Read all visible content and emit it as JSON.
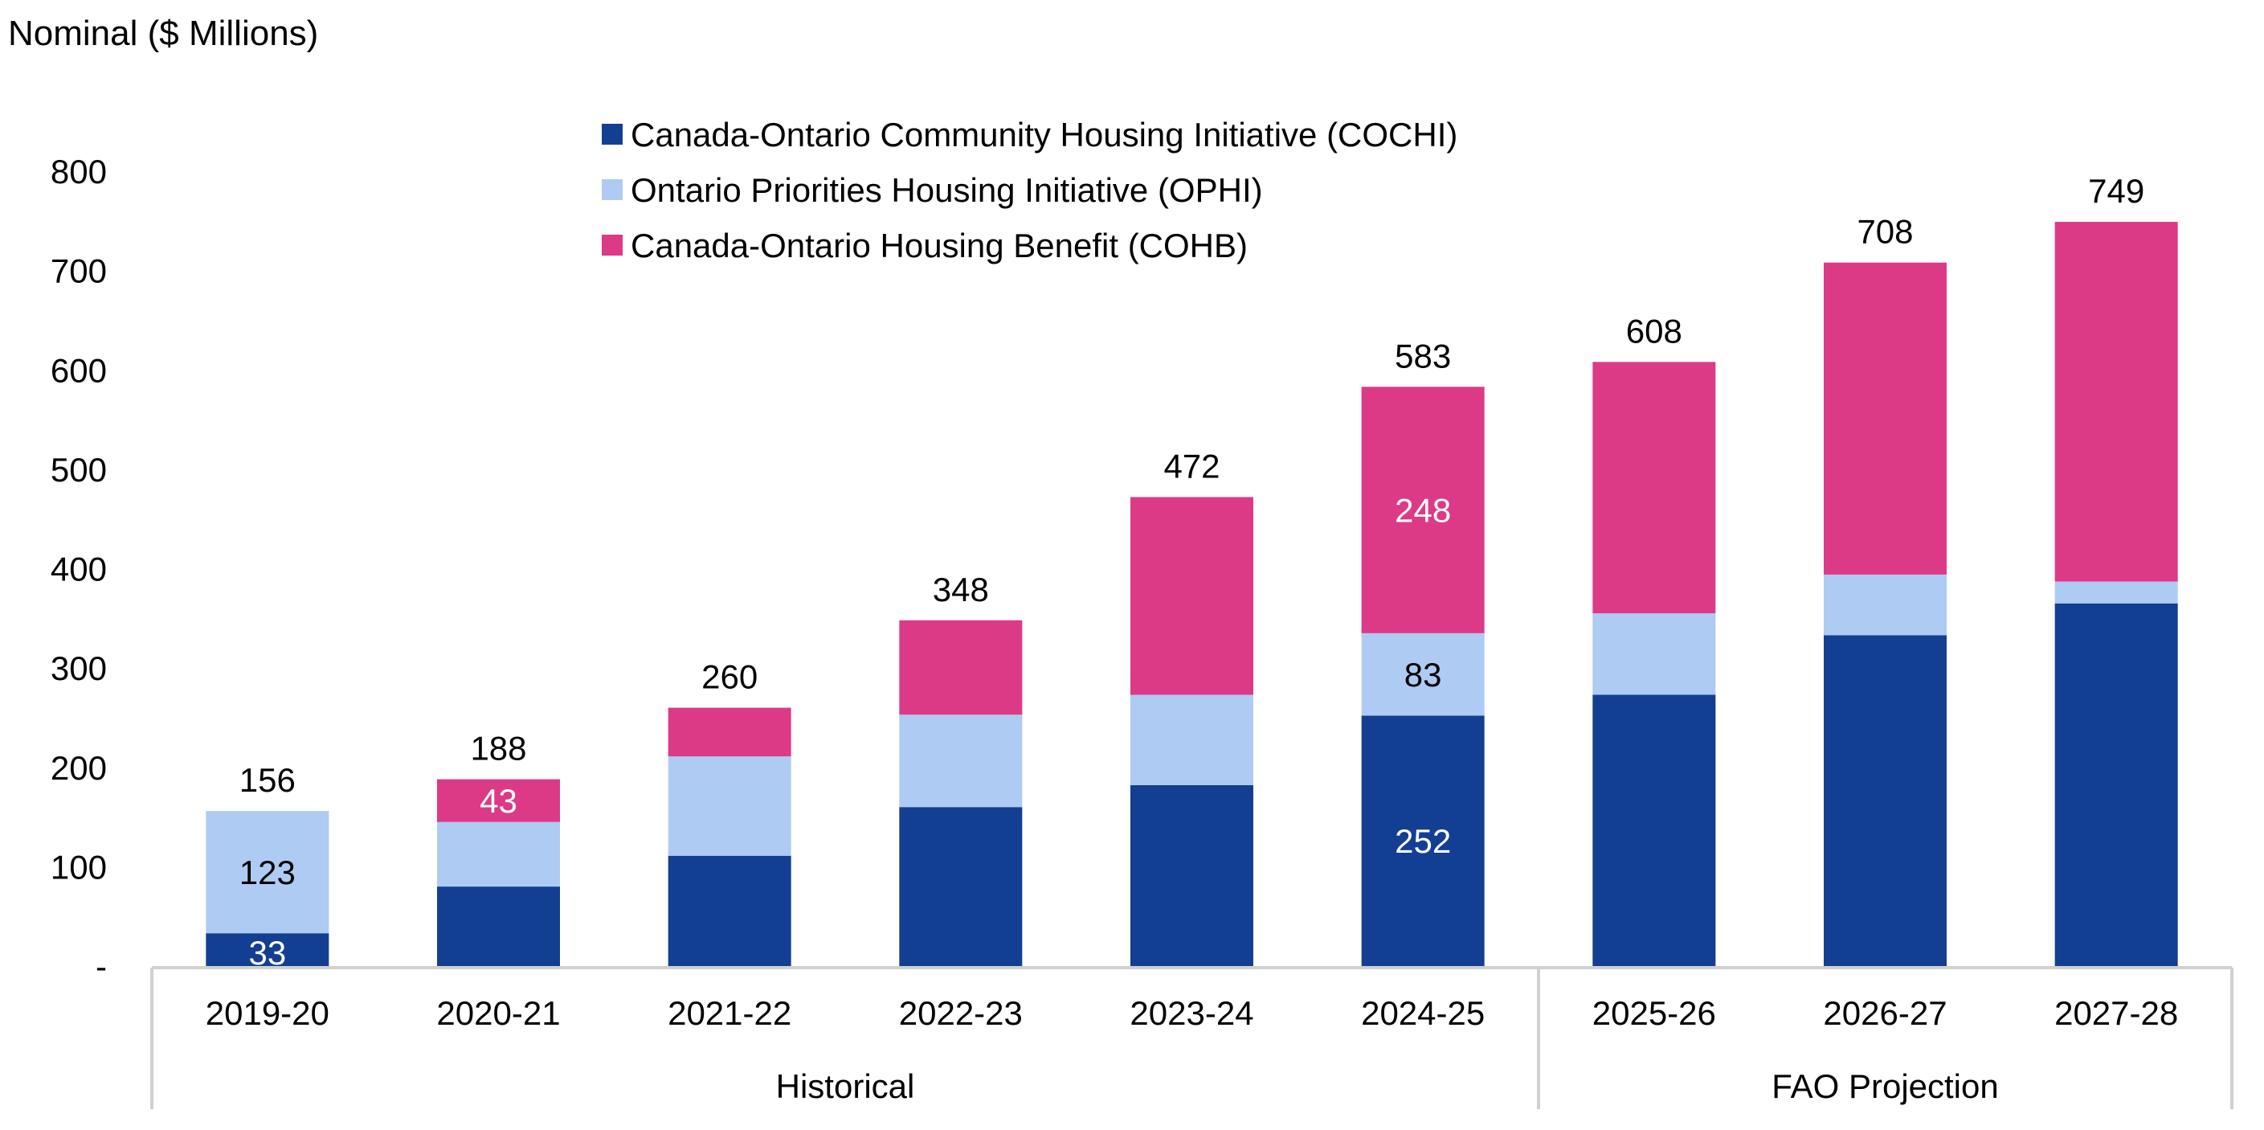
{
  "chart_data": {
    "type": "bar",
    "stacked": true,
    "title": "",
    "ylabel": "Nominal ($ Millions)",
    "xlabel": "",
    "ylim": [
      0,
      800
    ],
    "yticks": [
      0,
      100,
      200,
      300,
      400,
      500,
      600,
      700,
      800
    ],
    "ytick_labels": [
      "-",
      "100",
      "200",
      "300",
      "400",
      "500",
      "600",
      "700",
      "800"
    ],
    "grid": false,
    "legend_position": "top-center",
    "categories": [
      "2019-20",
      "2020-21",
      "2021-22",
      "2022-23",
      "2023-24",
      "2024-25",
      "2025-26",
      "2026-27",
      "2027-28"
    ],
    "category_groups": [
      {
        "label": "Historical",
        "categories": [
          "2019-20",
          "2020-21",
          "2021-22",
          "2022-23",
          "2023-24",
          "2024-25"
        ]
      },
      {
        "label": "FAO Projection",
        "categories": [
          "2025-26",
          "2026-27",
          "2027-28"
        ]
      }
    ],
    "series": [
      {
        "name": "Canada-Ontario Community Housing Initiative (COCHI)",
        "color": "#133F92",
        "values": [
          33,
          80,
          111,
          160,
          182,
          252,
          273,
          333,
          365
        ],
        "data_labels": [
          "33",
          "",
          "",
          "",
          "",
          "252",
          "",
          "",
          ""
        ],
        "label_color": "#ffffff"
      },
      {
        "name": "Ontario Priorities Housing Initiative (OPHI)",
        "color": "#AECBF3",
        "values": [
          123,
          65,
          100,
          93,
          91,
          83,
          82,
          61,
          22
        ],
        "data_labels": [
          "123",
          "",
          "",
          "",
          "",
          "83",
          "",
          "",
          ""
        ],
        "label_color": "#000000"
      },
      {
        "name": "Canada-Ontario Housing Benefit (COHB)",
        "color": "#DC3A87",
        "values": [
          0,
          43,
          49,
          95,
          199,
          248,
          253,
          314,
          362
        ],
        "data_labels": [
          "",
          "43",
          "",
          "",
          "",
          "248",
          "",
          "",
          ""
        ],
        "label_color": "#ffffff"
      }
    ],
    "totals": [
      156,
      188,
      260,
      348,
      472,
      583,
      608,
      708,
      749
    ],
    "total_labels": [
      "156",
      "188",
      "260",
      "348",
      "472",
      "583",
      "608",
      "708",
      "749"
    ]
  },
  "colors": {
    "axis": "#D0D0D0",
    "text": "#000000"
  }
}
